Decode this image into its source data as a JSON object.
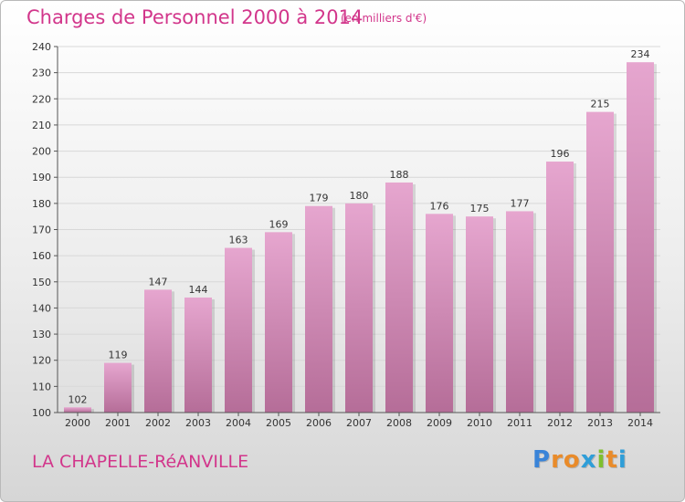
{
  "header": {
    "title": "Charges de Personnel 2000 à 2014",
    "subtitle": "(en milliers d'€)"
  },
  "footer": {
    "location": "LA CHAPELLE-RéANVILLE",
    "logo": {
      "text": "Proxiti",
      "letters": [
        "P",
        "r",
        "o",
        "x",
        "i",
        "t",
        "i"
      ],
      "colors": [
        "#3a84d8",
        "#e98b2a",
        "#e98b2a",
        "#2f9ed8",
        "#7fbf2e",
        "#e98b2a",
        "#2f9ed8"
      ]
    }
  },
  "colors": {
    "text_accent": "#d2368b",
    "bar_top": "#e6a6cf",
    "bar_bottom": "#b56d98",
    "grid": "#d8d8d8",
    "axis": "#555555"
  },
  "chart_data": {
    "type": "bar",
    "categories": [
      "2000",
      "2001",
      "2002",
      "2003",
      "2004",
      "2005",
      "2006",
      "2007",
      "2008",
      "2009",
      "2010",
      "2011",
      "2012",
      "2013",
      "2014"
    ],
    "values": [
      102,
      119,
      147,
      144,
      163,
      169,
      179,
      180,
      188,
      176,
      175,
      177,
      196,
      215,
      234
    ],
    "ylim": [
      100,
      240
    ],
    "yticks": [
      100,
      110,
      120,
      130,
      140,
      150,
      160,
      170,
      180,
      190,
      200,
      210,
      220,
      230,
      240
    ],
    "grid": true,
    "legend": "none"
  }
}
